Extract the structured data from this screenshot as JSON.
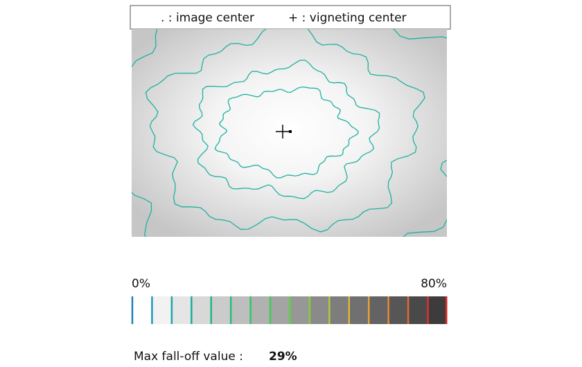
{
  "legend": {
    "image_center": ". : image center",
    "vignetting_center": "+ : vigneting center"
  },
  "scale": {
    "min_label": "0%",
    "max_label": "80%"
  },
  "result": {
    "label": "Max fall-off value :",
    "value": "29%"
  }
}
